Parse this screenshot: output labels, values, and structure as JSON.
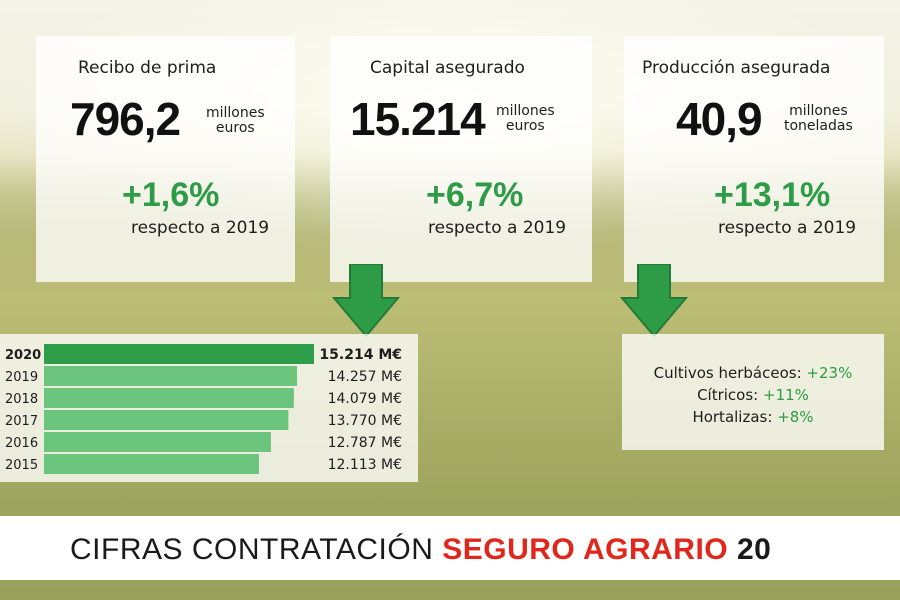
{
  "kpis": [
    {
      "title": "Recibo de prima",
      "value": "796,2",
      "unit_1": "millones",
      "unit_2": "euros",
      "change": "+1,6%",
      "reference": "respecto a 2019"
    },
    {
      "title": "Capital asegurado",
      "value": "15.214",
      "unit_1": "millones",
      "unit_2": "euros",
      "change": "+6,7%",
      "reference": "respecto a 2019"
    },
    {
      "title": "Producción asegurada",
      "value": "40,9",
      "unit_1": "millones",
      "unit_2": "toneladas",
      "change": "+13,1%",
      "reference": "respecto a 2019"
    }
  ],
  "chart_data": {
    "type": "bar",
    "orientation": "horizontal",
    "categories": [
      "2020",
      "2019",
      "2018",
      "2017",
      "2016",
      "2015"
    ],
    "values": [
      15214,
      14257,
      14079,
      13770,
      12787,
      12113
    ],
    "value_labels": [
      "15.214 M€",
      "14.257 M€",
      "14.079 M€",
      "13.770 M€",
      "12.787 M€",
      "12.113 M€"
    ],
    "highlight_category": "2020",
    "title": "",
    "xlabel": "",
    "ylabel": "",
    "grid": false
  },
  "crops": [
    {
      "label": "Cultivos herbáceos:",
      "pct": "+23%"
    },
    {
      "label": "Cítricos:",
      "pct": "+11%"
    },
    {
      "label": "Hortalizas:",
      "pct": "+8%"
    }
  ],
  "footer": {
    "part_1": "CIFRAS CONTRATACIÓN ",
    "part_2": "SEGURO AGRARIO",
    "part_3": " 20"
  },
  "colors": {
    "accent_green": "#2e9b46",
    "bar_highlight": "#2f9e4a",
    "bar_normal": "#6cc57c",
    "footer_red": "#e1261c"
  }
}
